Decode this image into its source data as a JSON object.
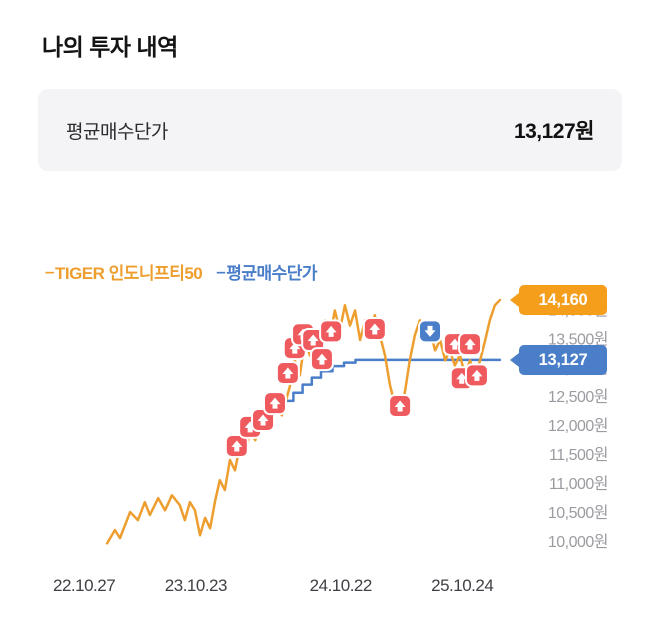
{
  "title": "나의 투자 내역",
  "summary": {
    "label": "평균매수단가",
    "value": "13,127원"
  },
  "chart": {
    "legend": [
      {
        "dash": "–",
        "label": "TIGER 인도니프티50",
        "color": "#ED9E2E"
      },
      {
        "dash": "–",
        "label": "평균매수단가",
        "color": "#4A7EC9"
      }
    ],
    "current_price_badge": {
      "label": "14,160",
      "price": 14160,
      "color": "#F59E1C"
    },
    "average_price_badge": {
      "label": "13,127",
      "price": 13127,
      "color": "#4A7EC9"
    }
  },
  "chart_data": {
    "type": "line",
    "title": "",
    "xlabel": "",
    "ylabel": "",
    "ylim": [
      9845,
      14420
    ],
    "grid": false,
    "legend_position": "top-left",
    "y_ticks": [
      {
        "value": 14000,
        "label": "14,000원"
      },
      {
        "value": 13500,
        "label": "13,500원"
      },
      {
        "value": 13000,
        "label": "13,000원"
      },
      {
        "value": 12500,
        "label": "12,500원"
      },
      {
        "value": 12000,
        "label": "12,000원"
      },
      {
        "value": 11500,
        "label": "11,500원"
      },
      {
        "value": 11000,
        "label": "11,000원"
      },
      {
        "value": 10500,
        "label": "10,500원"
      },
      {
        "value": 10000,
        "label": "10,000원"
      }
    ],
    "x_ticks": [
      {
        "t": 8.5,
        "label": "22.10.27"
      },
      {
        "t": 32.8,
        "label": "23.10.23"
      },
      {
        "t": 64.3,
        "label": "24.10.22"
      },
      {
        "t": 90.7,
        "label": "25.10.24"
      }
    ],
    "series": [
      {
        "name": "TIGER 인도니프티50",
        "color": "#ED9E2E",
        "points": [
          [
            13.5,
            9960
          ],
          [
            15.2,
            10190
          ],
          [
            16.3,
            10050
          ],
          [
            18.5,
            10500
          ],
          [
            20.2,
            10360
          ],
          [
            21.7,
            10670
          ],
          [
            22.8,
            10450
          ],
          [
            24.6,
            10740
          ],
          [
            26.1,
            10530
          ],
          [
            27.6,
            10790
          ],
          [
            29.3,
            10620
          ],
          [
            30.4,
            10360
          ],
          [
            31.5,
            10670
          ],
          [
            32.6,
            10530
          ],
          [
            33.7,
            10100
          ],
          [
            34.8,
            10400
          ],
          [
            35.9,
            10220
          ],
          [
            37.0,
            10700
          ],
          [
            38.0,
            11050
          ],
          [
            39.1,
            10880
          ],
          [
            40.2,
            11400
          ],
          [
            41.3,
            11220
          ],
          [
            42.4,
            11655
          ],
          [
            43.5,
            11480
          ],
          [
            44.6,
            11910
          ],
          [
            45.7,
            11740
          ],
          [
            47.2,
            12090
          ],
          [
            48.5,
            11910
          ],
          [
            50.0,
            12340
          ],
          [
            51.5,
            12170
          ],
          [
            53.3,
            12690
          ],
          [
            54.3,
            13120
          ],
          [
            55.4,
            12860
          ],
          [
            56.5,
            13470
          ],
          [
            57.6,
            13200
          ],
          [
            58.7,
            13640
          ],
          [
            59.8,
            13380
          ],
          [
            60.9,
            13810
          ],
          [
            62.0,
            13550
          ],
          [
            63.0,
            13980
          ],
          [
            64.1,
            13640
          ],
          [
            65.2,
            14070
          ],
          [
            66.3,
            13720
          ],
          [
            67.4,
            13980
          ],
          [
            68.5,
            13470
          ],
          [
            69.6,
            13810
          ],
          [
            70.7,
            13550
          ],
          [
            71.7,
            13900
          ],
          [
            72.8,
            13550
          ],
          [
            73.9,
            13210
          ],
          [
            75.0,
            12690
          ],
          [
            76.1,
            12340
          ],
          [
            77.2,
            12150
          ],
          [
            78.3,
            12600
          ],
          [
            79.3,
            13120
          ],
          [
            80.4,
            13550
          ],
          [
            81.5,
            13810
          ],
          [
            82.6,
            13470
          ],
          [
            83.7,
            13640
          ],
          [
            84.8,
            13290
          ],
          [
            85.9,
            13470
          ],
          [
            87.0,
            13120
          ],
          [
            88.0,
            13290
          ],
          [
            89.1,
            13030
          ],
          [
            90.2,
            13210
          ],
          [
            91.3,
            12860
          ],
          [
            92.4,
            13120
          ],
          [
            93.5,
            12860
          ],
          [
            94.6,
            13120
          ],
          [
            95.7,
            13470
          ],
          [
            96.7,
            13810
          ],
          [
            97.8,
            14070
          ],
          [
            98.9,
            14160
          ]
        ]
      },
      {
        "name": "평균매수단가",
        "color": "#4A7EC9",
        "points": [
          [
            52.6,
            12420
          ],
          [
            54.0,
            12420
          ],
          [
            54.0,
            12560
          ],
          [
            56.0,
            12560
          ],
          [
            56.0,
            12700
          ],
          [
            58.0,
            12700
          ],
          [
            58.0,
            12820
          ],
          [
            60.0,
            12820
          ],
          [
            60.0,
            12930
          ],
          [
            62.5,
            12930
          ],
          [
            62.5,
            13020
          ],
          [
            65.0,
            13020
          ],
          [
            65.0,
            13080
          ],
          [
            67.5,
            13080
          ],
          [
            67.5,
            13127
          ],
          [
            98.9,
            13127
          ]
        ]
      }
    ],
    "markers": [
      {
        "t": 41.7,
        "price": 11640,
        "kind": "buy"
      },
      {
        "t": 44.6,
        "price": 11970,
        "kind": "buy"
      },
      {
        "t": 47.4,
        "price": 12090,
        "kind": "buy"
      },
      {
        "t": 50.0,
        "price": 12380,
        "kind": "buy"
      },
      {
        "t": 52.8,
        "price": 12900,
        "kind": "buy"
      },
      {
        "t": 54.3,
        "price": 13330,
        "kind": "buy"
      },
      {
        "t": 56.1,
        "price": 13570,
        "kind": "buy"
      },
      {
        "t": 58.3,
        "price": 13470,
        "kind": "buy"
      },
      {
        "t": 60.2,
        "price": 13140,
        "kind": "buy"
      },
      {
        "t": 62.2,
        "price": 13620,
        "kind": "buy"
      },
      {
        "t": 71.7,
        "price": 13660,
        "kind": "buy"
      },
      {
        "t": 77.2,
        "price": 12330,
        "kind": "buy"
      },
      {
        "t": 89.1,
        "price": 13400,
        "kind": "buy"
      },
      {
        "t": 92.4,
        "price": 13400,
        "kind": "buy"
      },
      {
        "t": 90.6,
        "price": 12810,
        "kind": "buy"
      },
      {
        "t": 93.9,
        "price": 12860,
        "kind": "buy"
      },
      {
        "t": 83.7,
        "price": 13620,
        "kind": "sell"
      }
    ],
    "marker_colors": {
      "buy": "#EF5A5E",
      "sell": "#4A7EC9"
    }
  }
}
